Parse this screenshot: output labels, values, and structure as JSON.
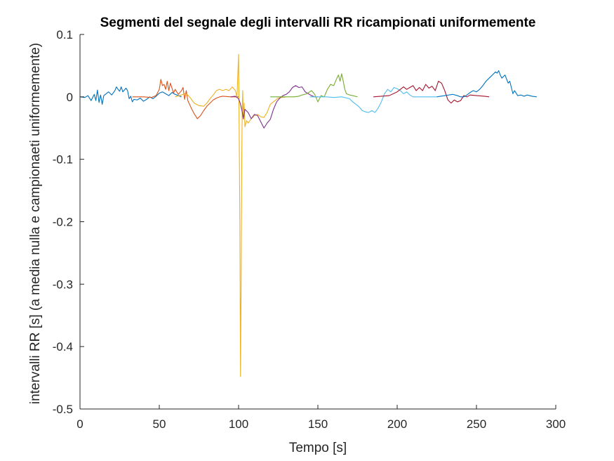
{
  "chart_data": {
    "type": "line",
    "title": "Segmenti del segnale degli intervalli RR ricampionati uniformemente",
    "xlabel": "Tempo [s]",
    "ylabel": "intervalli RR [s] (a media nulla e campionaeti uniformemente)",
    "xlim": [
      0,
      300
    ],
    "ylim": [
      -0.5,
      0.1
    ],
    "xticks": [
      0,
      50,
      100,
      150,
      200,
      250,
      300
    ],
    "yticks": [
      -0.5,
      -0.4,
      -0.3,
      -0.2,
      -0.1,
      0,
      0.1
    ],
    "xtick_labels": [
      "0",
      "50",
      "100",
      "150",
      "200",
      "250",
      "300"
    ],
    "ytick_labels": [
      "-0.5",
      "-0.4",
      "-0.3",
      "-0.2",
      "-0.1",
      "0",
      "0.1"
    ],
    "grid": false,
    "series": [
      {
        "color": "#0072BD",
        "x": [
          0,
          3,
          5,
          7,
          9,
          10,
          11,
          12,
          13,
          14,
          15,
          16,
          18,
          20,
          22,
          23,
          24,
          25,
          26,
          27,
          29,
          30,
          31,
          32,
          33,
          34,
          36,
          38,
          40,
          42,
          44,
          46,
          48,
          50,
          52,
          54,
          56,
          58,
          60,
          62,
          64
        ],
        "y": [
          0,
          -0.001,
          0.002,
          -0.006,
          0.004,
          -0.006,
          0.011,
          -0.009,
          0.003,
          -0.012,
          0.002,
          0.004,
          0.008,
          0.003,
          0.01,
          0.016,
          0.012,
          0.009,
          0.016,
          0.008,
          0.014,
          0.01,
          -0.003,
          0.001,
          -0.008,
          -0.004,
          -0.005,
          -0.002,
          -0.007,
          -0.004,
          0,
          -0.003,
          0.001,
          0.006,
          0.008,
          0.005,
          0.002,
          0.007,
          0.004,
          0.002,
          0
        ]
      },
      {
        "color": "#D95319",
        "x": [
          33,
          40,
          45,
          48,
          50,
          51,
          52,
          53,
          54,
          55,
          56,
          57,
          58,
          59,
          60,
          62,
          64,
          65,
          66,
          67,
          68,
          70,
          72,
          74,
          76,
          78,
          80,
          82,
          84,
          86,
          88,
          90,
          95,
          100
        ],
        "y": [
          0,
          0,
          -0.001,
          0.002,
          0.012,
          0.028,
          0.018,
          0.02,
          0.012,
          0.025,
          0.01,
          0.022,
          0.014,
          0.006,
          0.012,
          0.004,
          0.01,
          0.015,
          -0.004,
          0.01,
          -0.006,
          -0.017,
          -0.027,
          -0.035,
          -0.03,
          -0.022,
          -0.015,
          -0.01,
          -0.005,
          -0.002,
          0,
          0.001,
          0,
          0
        ]
      },
      {
        "color": "#EDB120",
        "x": [
          60,
          64,
          66,
          68,
          70,
          72,
          75,
          78,
          80,
          82,
          84,
          86,
          88,
          90,
          92,
          94,
          96,
          98,
          99,
          100,
          100.4,
          100.8,
          101.2,
          101.6,
          102,
          102.3,
          102.6,
          103,
          103.5,
          104,
          105,
          106,
          108,
          110,
          112,
          114,
          116,
          118,
          120,
          125,
          130
        ],
        "y": [
          0,
          0.003,
          0.005,
          0.003,
          -0.003,
          -0.01,
          -0.014,
          -0.015,
          -0.01,
          -0.003,
          0.003,
          0.01,
          0.012,
          0.01,
          0.012,
          0.01,
          0.016,
          0.01,
          0,
          0.068,
          -0.06,
          -0.2,
          -0.448,
          -0.3,
          -0.1,
          -0.02,
          0.01,
          -0.036,
          -0.01,
          -0.048,
          -0.038,
          -0.042,
          -0.035,
          -0.03,
          -0.028,
          -0.032,
          -0.033,
          -0.025,
          -0.012,
          -0.002,
          0
        ]
      },
      {
        "color": "#7E2F8E",
        "x": [
          95,
          98,
          100,
          101,
          102,
          103,
          104,
          106,
          108,
          110,
          112,
          114,
          115,
          116,
          118,
          120,
          122,
          124,
          126,
          128,
          130,
          132,
          134,
          136,
          138,
          140,
          142,
          144,
          146,
          148,
          150
        ],
        "y": [
          0,
          0.001,
          -0.003,
          -0.01,
          -0.02,
          -0.035,
          -0.02,
          -0.025,
          -0.035,
          -0.028,
          -0.03,
          -0.04,
          -0.045,
          -0.05,
          -0.042,
          -0.036,
          -0.02,
          -0.008,
          -0.002,
          0.002,
          0.004,
          0.008,
          0.015,
          0.018,
          0.015,
          0.016,
          0.008,
          0.005,
          0.002,
          0,
          0
        ]
      },
      {
        "color": "#77AC30",
        "x": [
          120,
          125,
          130,
          135,
          138,
          140,
          143,
          146,
          148,
          150,
          152,
          154,
          156,
          158,
          160,
          162,
          163,
          164,
          165,
          166,
          167,
          168,
          170,
          172,
          175
        ],
        "y": [
          0,
          0,
          0,
          0,
          0.001,
          0.003,
          0.005,
          0.01,
          0.004,
          -0.008,
          0.002,
          0,
          0.012,
          0.02,
          0.018,
          0.03,
          0.035,
          0.025,
          0.037,
          0.025,
          0.012,
          0.005,
          0.003,
          0.002,
          0
        ]
      },
      {
        "color": "#4DBEEE",
        "x": [
          145,
          150,
          155,
          160,
          165,
          170,
          172,
          174,
          176,
          178,
          180,
          182,
          184,
          186,
          188,
          190,
          192,
          194,
          196,
          198,
          200,
          202,
          204,
          206,
          208,
          210,
          215,
          220,
          225
        ],
        "y": [
          0,
          0,
          0,
          -0.001,
          0,
          -0.003,
          -0.008,
          -0.012,
          -0.016,
          -0.022,
          -0.024,
          -0.025,
          -0.022,
          -0.025,
          -0.018,
          -0.008,
          0.005,
          0.012,
          0.008,
          0.015,
          0.013,
          0.01,
          0.005,
          0.008,
          0.003,
          0,
          0,
          0,
          0
        ]
      },
      {
        "color": "#A2142F",
        "x": [
          185,
          195,
          200,
          202,
          204,
          206,
          208,
          210,
          212,
          214,
          216,
          218,
          220,
          222,
          224,
          226,
          228,
          230,
          232,
          234,
          236,
          238,
          240,
          242,
          244,
          246,
          250,
          255,
          258
        ],
        "y": [
          0,
          0.002,
          0.008,
          0.012,
          0.016,
          0.012,
          0.015,
          0.018,
          0.01,
          0.015,
          0.01,
          0.02,
          0.014,
          0.017,
          0.01,
          0.025,
          0.022,
          0.01,
          -0.005,
          -0.01,
          -0.005,
          -0.008,
          -0.006,
          0.002,
          0,
          0.003,
          0.002,
          0.001,
          0
        ]
      },
      {
        "color": "#0072BD",
        "x": [
          225,
          230,
          235,
          238,
          240,
          242,
          244,
          246,
          248,
          250,
          252,
          254,
          256,
          258,
          260,
          262,
          263,
          264,
          265,
          266,
          268,
          270,
          271,
          272,
          273,
          274,
          276,
          278,
          280,
          282,
          285,
          288
        ],
        "y": [
          0,
          0.002,
          0.004,
          0.002,
          0,
          0,
          0.003,
          0.007,
          0.01,
          0.008,
          0.012,
          0.018,
          0.025,
          0.03,
          0.035,
          0.04,
          0.038,
          0.042,
          0.035,
          0.03,
          0.035,
          0.022,
          0.025,
          0.015,
          0.005,
          0.01,
          0.002,
          0.003,
          0.001,
          0.003,
          0.001,
          0
        ]
      }
    ]
  }
}
